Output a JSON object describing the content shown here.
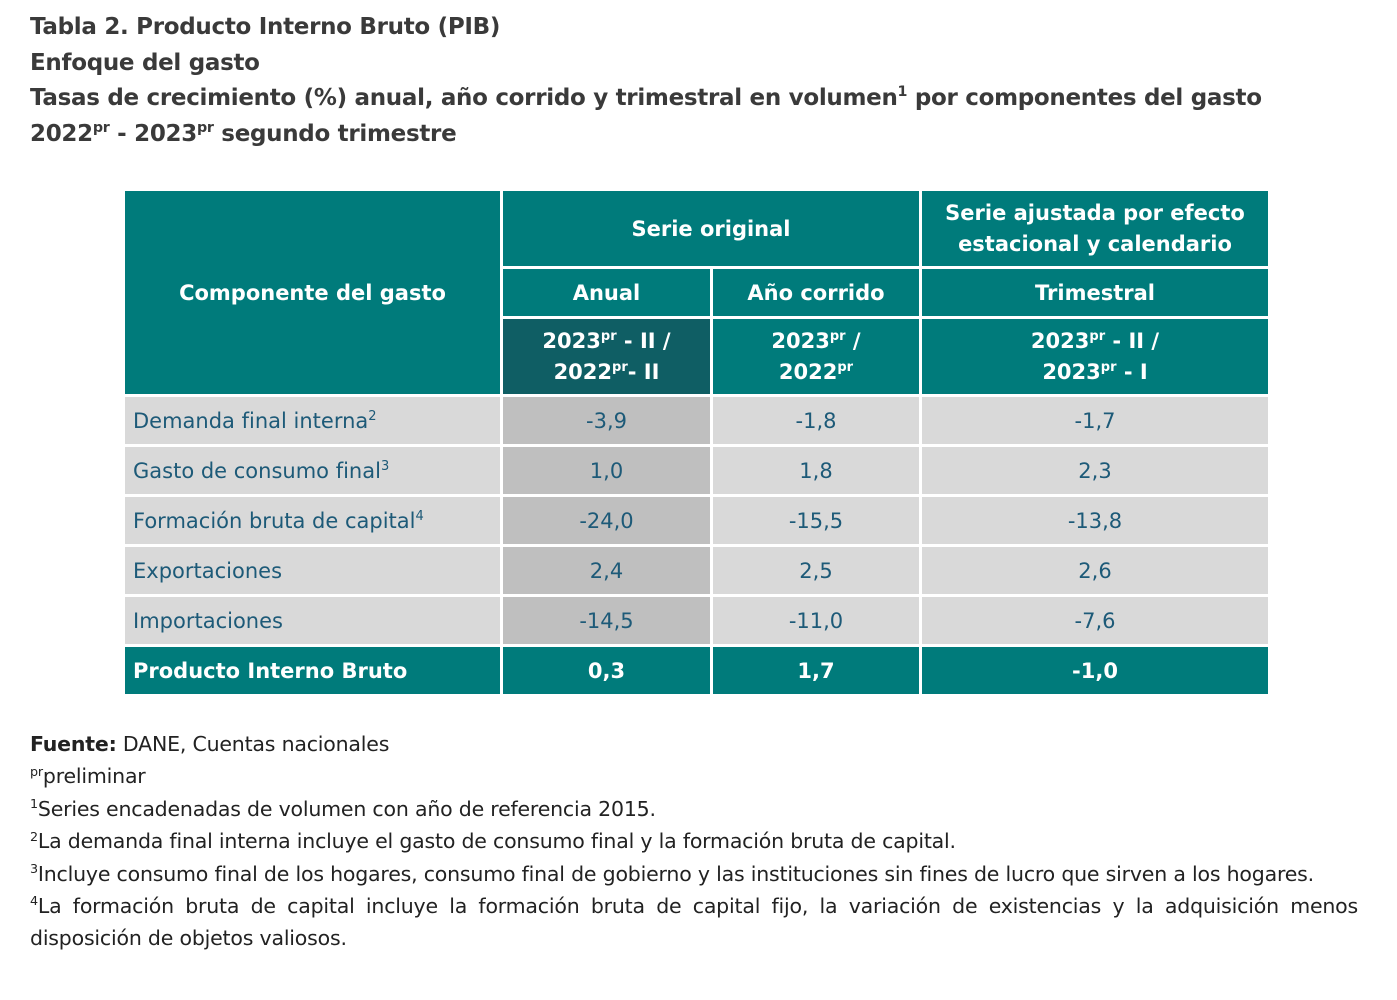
{
  "header": {
    "lines": [
      [
        "Tabla 2. Producto Interno Bruto (PIB)"
      ],
      [
        "Enfoque del gasto"
      ],
      [
        "Tasas de crecimiento (%) anual, año corrido y trimestral en volumen",
        {
          "sup": "1"
        },
        " por componentes del gasto"
      ],
      [
        "2022",
        {
          "sup": "pr"
        },
        " - 2023",
        {
          "sup": "pr"
        },
        " segundo trimestre"
      ]
    ]
  },
  "table": {
    "component_header": [
      "Componente del gasto"
    ],
    "group_headers": [
      [
        "Serie original"
      ],
      [
        [
          "Serie ajustada por efecto"
        ],
        [
          "estacional y calendario"
        ]
      ]
    ],
    "sub_headers": [
      [
        "Anual"
      ],
      [
        "Año corrido"
      ],
      [
        "Trimestral"
      ]
    ],
    "period_headers": [
      [
        [
          "2023",
          {
            "sup": "pr"
          },
          " - II /"
        ],
        [
          "2022",
          {
            "sup": "pr"
          },
          "- II"
        ]
      ],
      [
        [
          "2023",
          {
            "sup": "pr"
          },
          " /"
        ],
        [
          "2022",
          {
            "sup": "pr"
          }
        ]
      ],
      [
        [
          "2023",
          {
            "sup": "pr"
          },
          " - II /"
        ],
        [
          "2023",
          {
            "sup": "pr"
          },
          " - I"
        ]
      ]
    ],
    "rows": [
      {
        "label": [
          "Demanda final interna",
          {
            "sup": "2"
          }
        ],
        "values": [
          "-3,9",
          "-1,8",
          "-1,7"
        ]
      },
      {
        "label": [
          "Gasto de consumo final",
          {
            "sup": "3"
          }
        ],
        "values": [
          "1,0",
          "1,8",
          "2,3"
        ]
      },
      {
        "label": [
          "Formación bruta de capital",
          {
            "sup": "4"
          }
        ],
        "values": [
          "-24,0",
          "-15,5",
          "-13,8"
        ]
      },
      {
        "label": [
          "Exportaciones"
        ],
        "values": [
          "2,4",
          "2,5",
          "2,6"
        ]
      },
      {
        "label": [
          "Importaciones"
        ],
        "values": [
          "-14,5",
          "-11,0",
          "-7,6"
        ]
      },
      {
        "label": [
          "Producto Interno Bruto"
        ],
        "values": [
          "0,3",
          "1,7",
          "-1,0"
        ]
      }
    ]
  },
  "footnotes": [
    [
      {
        "b": "Fuente:"
      },
      " DANE, Cuentas nacionales"
    ],
    [
      {
        "sup": "pr"
      },
      "preliminar"
    ],
    [
      {
        "sup": "1"
      },
      "Series encadenadas de volumen con año de referencia 2015."
    ],
    [
      {
        "sup": "2"
      },
      "La demanda final interna incluye el gasto de consumo final y la formación bruta de capital."
    ],
    [
      {
        "sup": "3"
      },
      "Incluye consumo final de los hogares, consumo final de gobierno y las instituciones sin fines de lucro que sirven a los hogares."
    ],
    [
      {
        "sup": "4"
      },
      "La formación bruta de capital incluye la formación bruta de capital fijo, la variación de existencias y la adquisición menos disposición de objetos valiosos."
    ]
  ]
}
